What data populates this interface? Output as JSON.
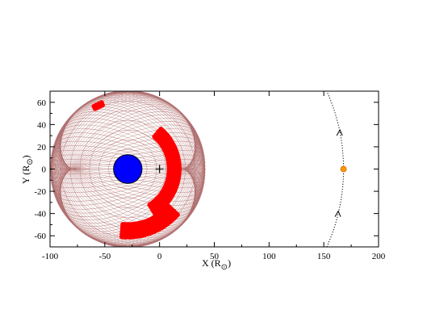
{
  "chart_data": {
    "type": "scatter",
    "xlabel": "X (R",
    "xlabel_sub": "⊙",
    "xlabel_close": ")",
    "ylabel": "Y (R",
    "ylabel_sub": "⊙",
    "ylabel_close": ")",
    "xlim": [
      -100,
      200
    ],
    "ylim": [
      -70,
      70
    ],
    "x_ticks": [
      -100,
      -50,
      0,
      50,
      100,
      150,
      200
    ],
    "y_ticks": [
      -60,
      -40,
      -20,
      0,
      20,
      40,
      60
    ],
    "grid": false,
    "colors": {
      "mesh": "#b07070",
      "cme": "#ff0000",
      "sun": "#0000ff",
      "observer": "#ff9900",
      "orbit": "#000000"
    },
    "mesh_sphere": {
      "center": [
        -29,
        0
      ],
      "radius": 70
    },
    "sun": {
      "center": [
        -29,
        0
      ],
      "radius": 13
    },
    "cross_marker": {
      "x": 0,
      "y": 0,
      "symbol": "+"
    },
    "observer": {
      "x": 168,
      "y": 0
    },
    "orbit_arc": {
      "center": [
        0,
        0
      ],
      "radius": 168,
      "y_range": [
        -70,
        70
      ],
      "arrow_y": [
        -40,
        33
      ]
    },
    "cme_regions": [
      {
        "name": "top blob",
        "angle_deg_range": [
          112,
          120
        ],
        "radius_range": [
          62,
          66
        ]
      },
      {
        "name": "arc",
        "angle_deg_range": [
          -58,
          52
        ],
        "radius_range": [
          38,
          49
        ]
      },
      {
        "name": "bottom arc",
        "angle_deg_range": [
          -95,
          -40
        ],
        "radius_range": [
          50,
          62
        ]
      }
    ]
  }
}
